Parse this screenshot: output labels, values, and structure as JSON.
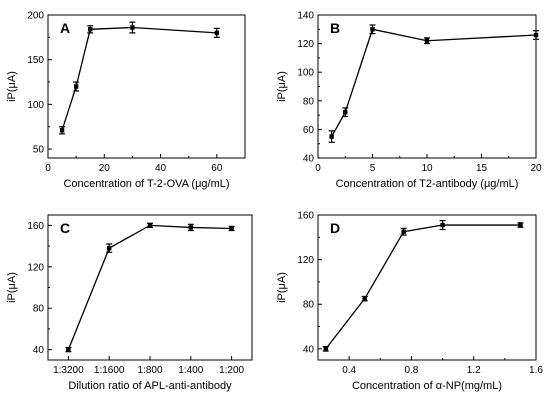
{
  "chart_data": [
    {
      "panel_label": "A",
      "type": "line",
      "xlabel": "Concentration of  T-2-OVA (μg/mL)",
      "ylabel": "iP(μA)",
      "xscale": "linear",
      "xlim": [
        0,
        70
      ],
      "ylim": [
        40,
        200
      ],
      "xticks": [
        0,
        20,
        40,
        60
      ],
      "xtick_labels": [
        "0",
        "20",
        "40",
        "60"
      ],
      "yticks": [
        50,
        100,
        150,
        200
      ],
      "ytick_labels": [
        "50",
        "100",
        "150",
        "200"
      ],
      "grid": false,
      "series": [
        {
          "x": [
            5,
            10,
            15,
            30,
            60
          ],
          "y": [
            71,
            120,
            184,
            186,
            180
          ],
          "error": [
            4,
            5,
            4,
            6,
            5
          ]
        }
      ]
    },
    {
      "panel_label": "B",
      "type": "line",
      "xlabel": "Concentration of T2-antibody (μg/mL)",
      "ylabel": "iP(μA)",
      "xscale": "linear",
      "xlim": [
        0,
        20
      ],
      "ylim": [
        40,
        140
      ],
      "xticks": [
        0,
        5,
        10,
        15,
        20
      ],
      "xtick_labels": [
        "0",
        "5",
        "10",
        "15",
        "20"
      ],
      "yticks": [
        40,
        60,
        80,
        100,
        120,
        140
      ],
      "ytick_labels": [
        "40",
        "60",
        "80",
        "100",
        "120",
        "140"
      ],
      "grid": false,
      "series": [
        {
          "x": [
            1.25,
            2.5,
            5,
            10,
            20
          ],
          "y": [
            55,
            72,
            130,
            122,
            126
          ],
          "error": [
            4,
            3,
            3,
            2,
            3
          ]
        }
      ]
    },
    {
      "panel_label": "C",
      "type": "line",
      "xlabel": "Dilution ratio of APL-anti-antibody",
      "ylabel": "iP(μA)",
      "xscale": "categorical",
      "categories": [
        "1:3200",
        "1:1600",
        "1:800",
        "1:400",
        "1:200"
      ],
      "ylim": [
        30,
        170
      ],
      "yticks": [
        40,
        80,
        120,
        160
      ],
      "ytick_labels": [
        "40",
        "80",
        "120",
        "160"
      ],
      "grid": false,
      "series": [
        {
          "values": [
            40,
            138,
            160,
            158,
            157
          ],
          "error": [
            2,
            4,
            2,
            3,
            2
          ]
        }
      ]
    },
    {
      "panel_label": "D",
      "type": "line",
      "xlabel": "Concentration of α-NP(mg/mL)",
      "ylabel": "iP(μA)",
      "xscale": "linear",
      "xlim": [
        0.2,
        1.6
      ],
      "ylim": [
        30,
        160
      ],
      "xticks": [
        0.4,
        0.8,
        1.2,
        1.6
      ],
      "xtick_labels": [
        "0.4",
        "0.8",
        "1.2",
        "1.6"
      ],
      "yticks": [
        40,
        80,
        120,
        160
      ],
      "ytick_labels": [
        "40",
        "80",
        "120",
        "160"
      ],
      "grid": false,
      "series": [
        {
          "x": [
            0.25,
            0.5,
            0.75,
            1.0,
            1.5
          ],
          "y": [
            40,
            85,
            145,
            151,
            151
          ],
          "error": [
            2,
            2,
            3,
            4,
            2
          ]
        }
      ]
    }
  ]
}
